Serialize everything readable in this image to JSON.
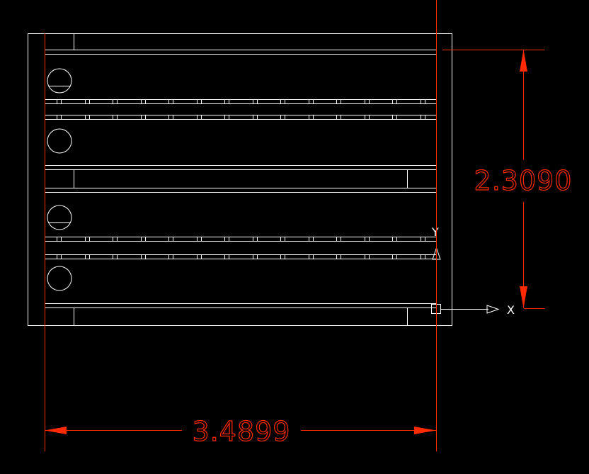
{
  "drawing": {
    "dimension_horizontal": "3.4899",
    "dimension_vertical": "2.3090",
    "ucs_x_label": "X",
    "ucs_y_label": "Y"
  },
  "colors": {
    "background": "#000000",
    "geometry": "#ffffff",
    "dimension": "#ff2a00"
  }
}
